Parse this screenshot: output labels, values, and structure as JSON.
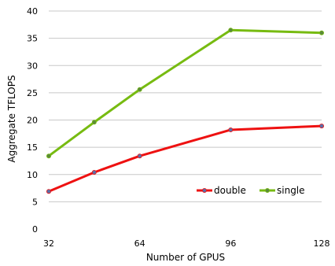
{
  "chart_data": {
    "type": "line",
    "title": "",
    "xlabel": "Number of GPUS",
    "ylabel": "Aggregate TFLOPS",
    "x_ticks": [
      32,
      64,
      96,
      128
    ],
    "y_ticks": [
      0,
      5,
      10,
      15,
      20,
      25,
      30,
      35,
      40
    ],
    "xlim": [
      32,
      128
    ],
    "ylim": [
      0,
      40
    ],
    "grid": "horizontal",
    "legend_position": "bottom-right",
    "series": [
      {
        "name": "double",
        "color": "#ee1111",
        "marker_color": "#5b6ea8",
        "x": [
          32,
          48,
          64,
          96,
          128
        ],
        "y": [
          6.9,
          10.4,
          13.4,
          18.2,
          18.9
        ]
      },
      {
        "name": "single",
        "color": "#77bb11",
        "marker_color": "#5b8a3a",
        "x": [
          32,
          48,
          64,
          96,
          128
        ],
        "y": [
          13.4,
          19.6,
          25.6,
          36.5,
          36.0
        ]
      }
    ]
  }
}
